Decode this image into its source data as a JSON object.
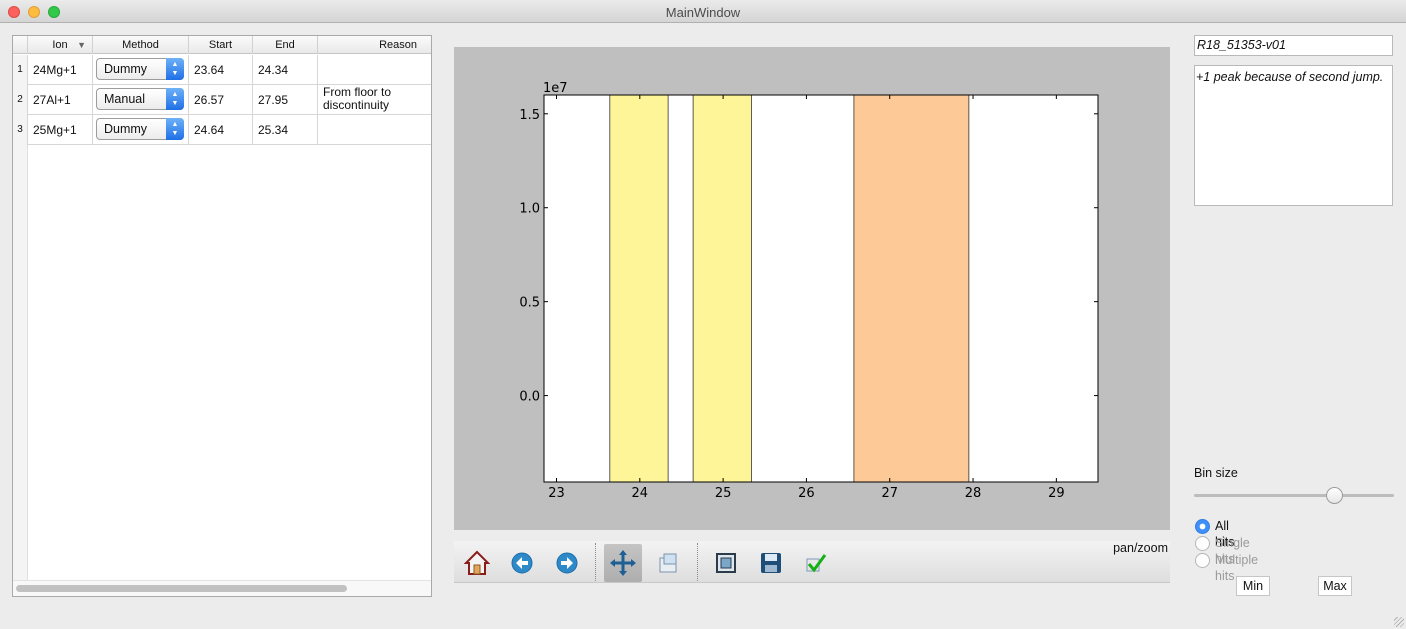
{
  "window": {
    "title": "MainWindow"
  },
  "table": {
    "headers": [
      "Ion",
      "Method",
      "Start",
      "End",
      "Reason"
    ],
    "rows": [
      {
        "num": "1",
        "ion": "24Mg+1",
        "method": "Dummy",
        "start": "23.64",
        "end": "24.34",
        "reason": ""
      },
      {
        "num": "2",
        "ion": "27Al+1",
        "method": "Manual",
        "start": "26.57",
        "end": "27.95",
        "reason": "From floor to discontinuity"
      },
      {
        "num": "3",
        "ion": "25Mg+1",
        "method": "Dummy",
        "start": "24.64",
        "end": "25.34",
        "reason": ""
      }
    ]
  },
  "chart_data": {
    "type": "bar",
    "title": "",
    "xlabel": "",
    "ylabel": "",
    "y_offset_label": "1e7",
    "xlim": [
      22.85,
      29.5
    ],
    "ylim": [
      -0.46,
      1.6
    ],
    "xticks": [
      23,
      24,
      25,
      26,
      27,
      28,
      29
    ],
    "xtick_labels": [
      "23",
      "24",
      "25",
      "26",
      "27",
      "28",
      "29"
    ],
    "yticks": [
      0.0,
      0.5,
      1.0,
      1.5
    ],
    "ytick_labels": [
      "0.0",
      "0.5",
      "1.0",
      "1.5"
    ],
    "grid": false,
    "spans": [
      {
        "start": 23.64,
        "end": 24.34,
        "color": "#fdf598"
      },
      {
        "start": 24.64,
        "end": 25.34,
        "color": "#fdf598"
      },
      {
        "start": 26.57,
        "end": 27.95,
        "color": "#fdca97"
      }
    ]
  },
  "toolbar": {
    "mode": "pan/zoom",
    "icons": [
      "home-icon",
      "back-icon",
      "forward-icon",
      "pan-icon",
      "zoom-icon",
      "subplots-icon",
      "save-icon",
      "check-icon"
    ]
  },
  "right": {
    "name": "R18_51353-v01",
    "note": "+1 peak because of second jump.",
    "bin_label": "Bin size",
    "bin_value": 0.7,
    "radios": [
      {
        "label": "All hits",
        "checked": true,
        "disabled": false
      },
      {
        "label": "Single hits",
        "checked": false,
        "disabled": true
      },
      {
        "label": "Multiple hits",
        "checked": false,
        "disabled": true
      }
    ],
    "min_label": "Min",
    "max_label": "Max"
  }
}
